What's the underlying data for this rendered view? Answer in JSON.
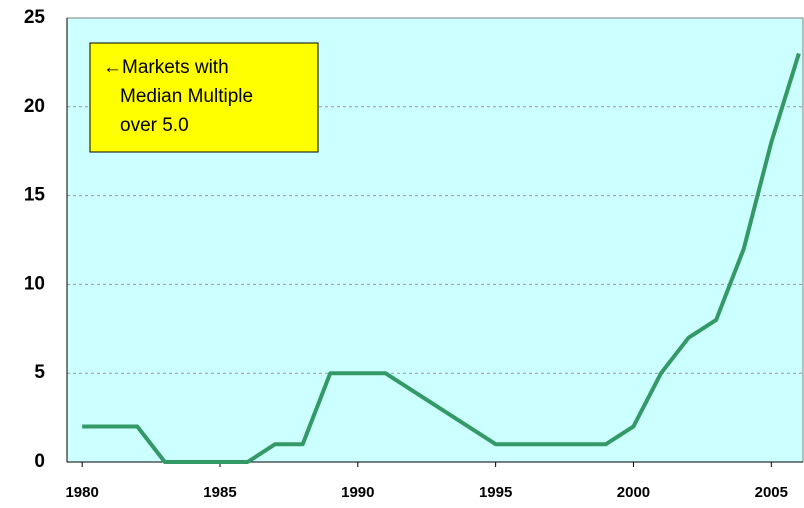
{
  "chart_data": {
    "type": "line",
    "annotation": [
      "←Markets with",
      "Median Multiple",
      "over 5.0"
    ],
    "x": [
      1980,
      1981,
      1982,
      1983,
      1984,
      1985,
      1986,
      1987,
      1988,
      1989,
      1990,
      1991,
      1992,
      1993,
      1994,
      1995,
      1996,
      1997,
      1998,
      1999,
      2000,
      2001,
      2002,
      2003,
      2004,
      2005,
      2006
    ],
    "series": [
      {
        "color": "#339966",
        "values": [
          2,
          2,
          2,
          0,
          0,
          0,
          0,
          1,
          1,
          5,
          5,
          5,
          4,
          3,
          2,
          1,
          1,
          1,
          1,
          1,
          2,
          5,
          7,
          8,
          12,
          18,
          23
        ]
      }
    ],
    "xlim": [
      1979.45,
      2006.15
    ],
    "xticks": [
      1980,
      1985,
      1990,
      1995,
      2000,
      2005
    ],
    "ylim": [
      0,
      25
    ],
    "yticks": [
      0,
      5,
      10,
      15,
      20,
      25
    ],
    "grid": true,
    "background": "#ccffff"
  }
}
